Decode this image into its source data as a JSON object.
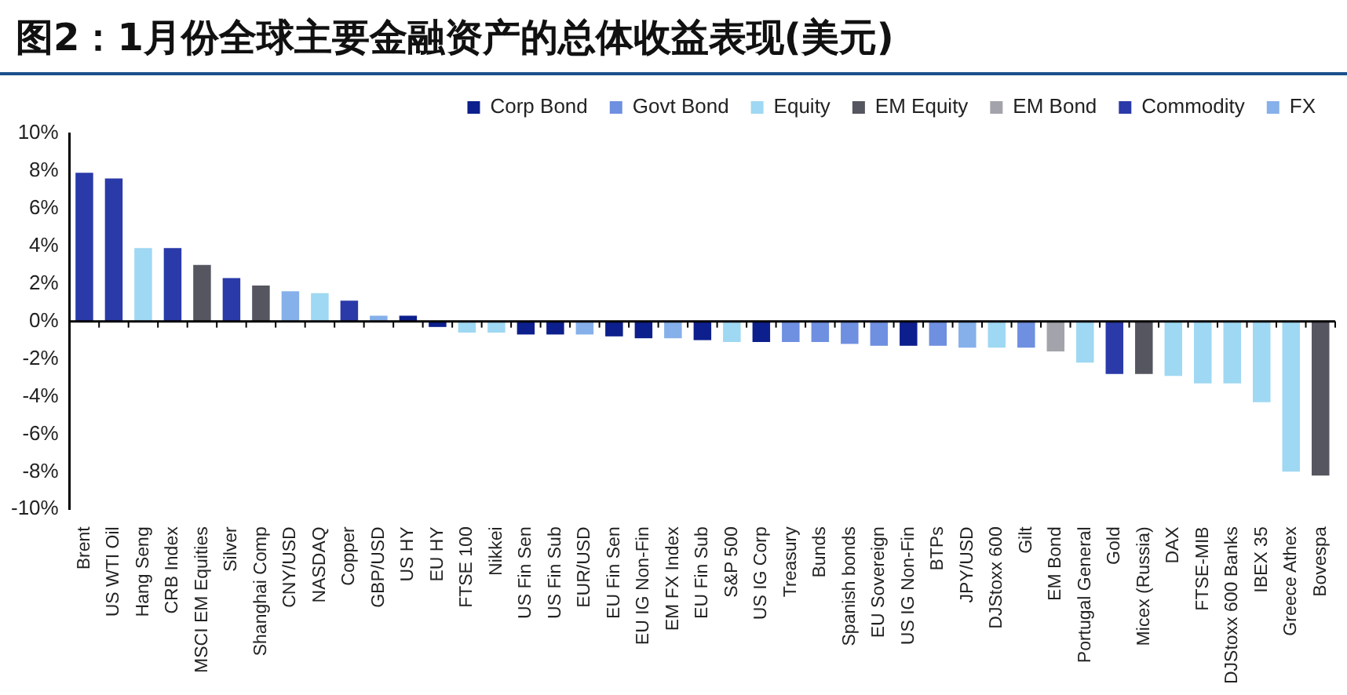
{
  "chart_data": {
    "type": "bar",
    "title": "图2：1月份全球主要金融资产的总体收益表现(美元)",
    "categories": [
      "Brent",
      "US WTI Oil",
      "Hang Seng",
      "CRB Index",
      "MSCI EM Equities",
      "Silver",
      "Shanghai Comp",
      "CNY/USD",
      "NASDAQ",
      "Copper",
      "GBP/USD",
      "US HY",
      "EU HY",
      "FTSE 100",
      "Nikkei",
      "US Fin Sen",
      "US Fin Sub",
      "EUR/USD",
      "EU Fin Sen",
      "EU IG Non-Fin",
      "EM FX Index",
      "EU Fin Sub",
      "S&P 500",
      "US IG Corp",
      "Treasury",
      "Bunds",
      "Spanish bonds",
      "EU Sovereign",
      "US IG Non-Fin",
      "BTPs",
      "JPY/USD",
      "DJStoxx 600",
      "Gilt",
      "EM Bond",
      "Portugal General",
      "Gold",
      "Micex (Russia)",
      "DAX",
      "FTSE-MIB",
      "DJStoxx 600 Banks",
      "IBEX 35",
      "Greece Athex",
      "Bovespa"
    ],
    "series": [
      {
        "name": "Corp Bond",
        "color": "#0d1f8c",
        "values": [
          null,
          null,
          null,
          null,
          null,
          null,
          null,
          null,
          null,
          null,
          null,
          0.3,
          -0.3,
          null,
          null,
          -0.7,
          -0.7,
          null,
          -0.8,
          -0.9,
          null,
          -1.0,
          null,
          -1.1,
          null,
          null,
          null,
          null,
          -1.3,
          null,
          null,
          null,
          null,
          null,
          null,
          null,
          null,
          null,
          null,
          null,
          null,
          null,
          null
        ]
      },
      {
        "name": "Govt Bond",
        "color": "#6f8fe0",
        "values": [
          null,
          null,
          null,
          null,
          null,
          null,
          null,
          null,
          null,
          null,
          null,
          null,
          null,
          null,
          null,
          null,
          null,
          null,
          null,
          null,
          null,
          null,
          null,
          null,
          -1.1,
          -1.1,
          -1.2,
          -1.3,
          null,
          -1.3,
          null,
          null,
          -1.4,
          null,
          null,
          null,
          null,
          null,
          null,
          null,
          null,
          null,
          null
        ]
      },
      {
        "name": "Equity",
        "color": "#9fd8f2",
        "values": [
          null,
          null,
          3.9,
          null,
          null,
          null,
          null,
          null,
          1.5,
          null,
          null,
          null,
          null,
          -0.6,
          -0.6,
          null,
          null,
          null,
          null,
          null,
          null,
          null,
          -1.1,
          null,
          null,
          null,
          null,
          null,
          null,
          null,
          null,
          -1.4,
          null,
          null,
          -2.2,
          null,
          null,
          -2.9,
          -3.3,
          -3.3,
          -4.3,
          -8.0,
          null
        ]
      },
      {
        "name": "EM Equity",
        "color": "#55565f",
        "values": [
          null,
          null,
          null,
          null,
          3.0,
          null,
          1.9,
          null,
          null,
          null,
          null,
          null,
          null,
          null,
          null,
          null,
          null,
          null,
          null,
          null,
          null,
          null,
          null,
          null,
          null,
          null,
          null,
          null,
          null,
          null,
          null,
          null,
          null,
          null,
          null,
          null,
          -2.8,
          null,
          null,
          null,
          null,
          null,
          -8.2
        ]
      },
      {
        "name": "EM Bond",
        "color": "#a3a3ab",
        "values": [
          null,
          null,
          null,
          null,
          null,
          null,
          null,
          null,
          null,
          null,
          null,
          null,
          null,
          null,
          null,
          null,
          null,
          null,
          null,
          null,
          null,
          null,
          null,
          null,
          null,
          null,
          null,
          null,
          null,
          null,
          null,
          null,
          null,
          -1.6,
          null,
          null,
          null,
          null,
          null,
          null,
          null,
          null,
          null
        ]
      },
      {
        "name": "Commodity",
        "color": "#2a3aa8",
        "values": [
          7.9,
          7.6,
          null,
          3.9,
          null,
          2.3,
          null,
          null,
          null,
          1.1,
          null,
          null,
          null,
          null,
          null,
          null,
          null,
          null,
          null,
          null,
          null,
          null,
          null,
          null,
          null,
          null,
          null,
          null,
          null,
          null,
          null,
          null,
          null,
          null,
          null,
          -2.8,
          null,
          null,
          null,
          null,
          null,
          null,
          null
        ]
      },
      {
        "name": "FX",
        "color": "#86b0ea",
        "values": [
          null,
          null,
          null,
          null,
          null,
          null,
          null,
          1.6,
          null,
          null,
          0.3,
          null,
          null,
          null,
          null,
          null,
          null,
          -0.7,
          null,
          null,
          -0.9,
          null,
          null,
          null,
          null,
          null,
          null,
          null,
          null,
          null,
          -1.4,
          null,
          null,
          null,
          null,
          null,
          null,
          null,
          null,
          null,
          null,
          null,
          null
        ]
      }
    ],
    "ylim": [
      -10,
      10
    ],
    "yticks": [
      {
        "value": -10,
        "label": "-10%"
      },
      {
        "value": -8,
        "label": "-8%"
      },
      {
        "value": -6,
        "label": "-6%"
      },
      {
        "value": -4,
        "label": "-4%"
      },
      {
        "value": -2,
        "label": "-2%"
      },
      {
        "value": 0,
        "label": "0%"
      },
      {
        "value": 2,
        "label": "2%"
      },
      {
        "value": 4,
        "label": "4%"
      },
      {
        "value": 6,
        "label": "6%"
      },
      {
        "value": 8,
        "label": "8%"
      },
      {
        "value": 10,
        "label": "10%"
      }
    ],
    "legend": "top right"
  }
}
